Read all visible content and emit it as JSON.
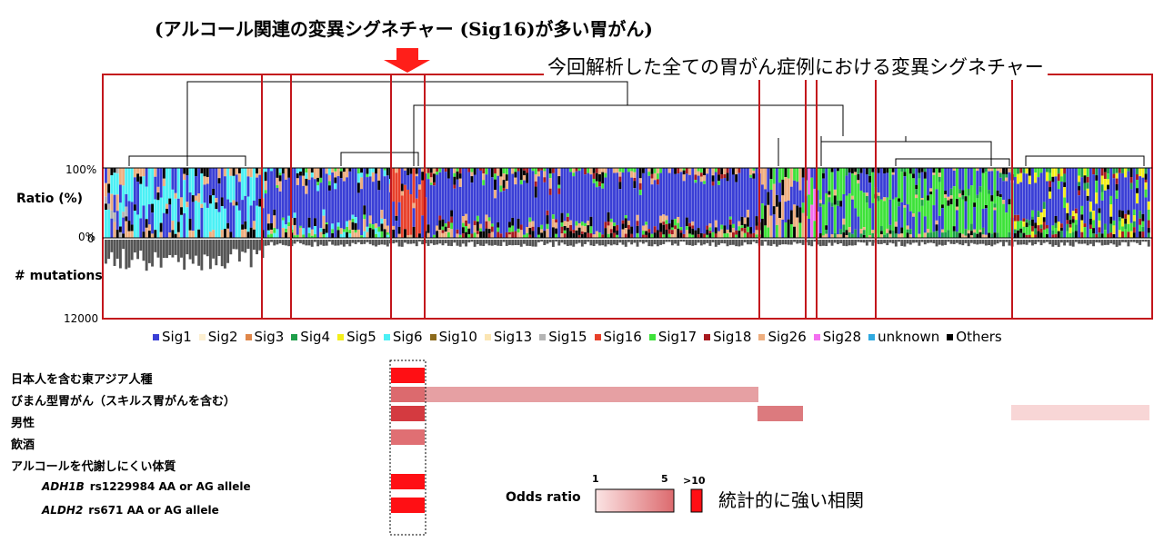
{
  "header": {
    "title_top": "(アルコール関連の変異シグネチャー (Sig16)が多い胃がん)",
    "title_box": "今回解析した全ての胃がん症例における変異シグネチャー"
  },
  "chart_data": {
    "type": "bar",
    "subtype": "stacked-bar with dendrogram",
    "y_top": {
      "label": "Ratio (%)",
      "ticks": [
        "100%",
        "0%"
      ]
    },
    "y_bottom": {
      "label": "# mutations",
      "ticks": [
        "0",
        "12000"
      ]
    },
    "legend": {
      "placement": "bottom",
      "entries": [
        {
          "name": "Sig1",
          "color": "#3a3fd6"
        },
        {
          "name": "Sig2",
          "color": "#fdf0d2"
        },
        {
          "name": "Sig3",
          "color": "#e0874a"
        },
        {
          "name": "Sig4",
          "color": "#1f9e4a"
        },
        {
          "name": "Sig5",
          "color": "#f4ef1a"
        },
        {
          "name": "Sig6",
          "color": "#4cf0f5"
        },
        {
          "name": "Sig10",
          "color": "#8c6a1c"
        },
        {
          "name": "Sig13",
          "color": "#fbe5b3"
        },
        {
          "name": "Sig15",
          "color": "#b4b4b4"
        },
        {
          "name": "Sig16",
          "color": "#e8402a"
        },
        {
          "name": "Sig17",
          "color": "#3ee23a"
        },
        {
          "name": "Sig18",
          "color": "#a8191e"
        },
        {
          "name": "Sig26",
          "color": "#eeae7f"
        },
        {
          "name": "Sig28",
          "color": "#f46ef0"
        },
        {
          "name": "unknown",
          "color": "#2fa9e0"
        },
        {
          "name": "Others",
          "color": "#000000"
        }
      ]
    }
  },
  "associations": {
    "rows": [
      {
        "label": "日本人を含む東アジア人種"
      },
      {
        "label": "びまん型胃がん（スキルス胃がんを含む）"
      },
      {
        "label": "男性"
      },
      {
        "label": "飲酒"
      },
      {
        "label": "アルコールを代謝しにくい体質"
      },
      {
        "gene": "ADH1B",
        "label": "rs1229984 AA or AG allele"
      },
      {
        "gene": "ALDH2",
        "label": "rs671 AA or AG allele"
      }
    ]
  },
  "odds": {
    "label": "Odds ratio",
    "tick_1": "1",
    "tick_5": "5",
    "tick_10": ">10",
    "significance_label": "統計的に強い相関",
    "colors": {
      "low": "#fbe0e0",
      "high": "#dc6a6e",
      "strong": "#ff0f14"
    }
  }
}
